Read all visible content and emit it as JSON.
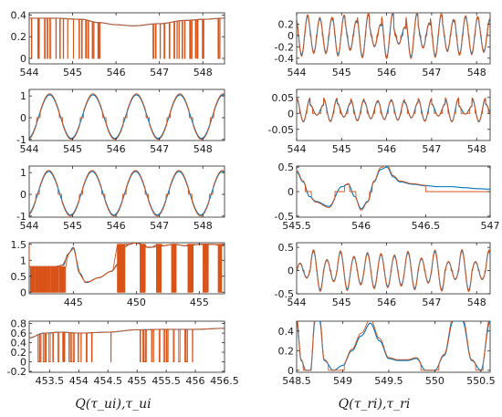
{
  "figure": {
    "xlabels": [
      "Q(τ_ui),τ_ui",
      "Q(τ_ri),τ_ri"
    ],
    "series_colors": {
      "tau": "#0072BD",
      "Q": "#D95319"
    }
  },
  "chart_data": [
    {
      "type": "line",
      "col": 0,
      "row": 0,
      "xlim": [
        544,
        548.5
      ],
      "ylim": [
        -0.05,
        0.42
      ],
      "xticks": [
        544,
        545,
        546,
        547,
        548
      ],
      "xticklabels": [
        "544",
        "545",
        "546",
        "547",
        "548"
      ],
      "yticks": [
        0,
        0.2,
        0.4
      ],
      "yticklabels": [
        "0",
        "0.2",
        "0.4"
      ],
      "series": [
        {
          "role": "tau",
          "kind": "smooth",
          "x": [
            544,
            544.6,
            545.2,
            545.6,
            546.0,
            546.4,
            547.0,
            547.6,
            548.0,
            548.5
          ],
          "y": [
            0.37,
            0.37,
            0.36,
            0.33,
            0.31,
            0.3,
            0.32,
            0.35,
            0.36,
            0.37
          ]
        },
        {
          "role": "Q",
          "kind": "burst",
          "lo": 0,
          "followTau": true,
          "seed": 11,
          "segments": [
            [
              544.05,
              545.3,
              0.4
            ],
            [
              545.35,
              545.75,
              0.25
            ],
            [
              546.85,
              548.1,
              0.5
            ],
            [
              548.35,
              548.45,
              0.2
            ]
          ]
        }
      ]
    },
    {
      "type": "line",
      "col": 0,
      "row": 1,
      "xlim": [
        544,
        548.5
      ],
      "ylim": [
        -1.05,
        1.3
      ],
      "xticks": [
        544,
        545,
        546,
        547,
        548
      ],
      "xticklabels": [
        "544",
        "545",
        "546",
        "547",
        "548"
      ],
      "yticks": [
        -1,
        0,
        1
      ],
      "yticklabels": [
        "-1",
        "0",
        "1"
      ],
      "series": [
        {
          "role": "tau",
          "kind": "sine",
          "amp": 1.0,
          "period": 1.0,
          "phase": 544.22,
          "offset": 0.05
        },
        {
          "role": "Q",
          "kind": "quant",
          "amp": 1.0,
          "period": 1.0,
          "phase": 544.22,
          "offset": 0.05,
          "step": 0.5
        }
      ]
    },
    {
      "type": "line",
      "col": 0,
      "row": 2,
      "xlim": [
        544,
        548.5
      ],
      "ylim": [
        -1.05,
        1.3
      ],
      "xticks": [
        544,
        545,
        546,
        547,
        548
      ],
      "xticklabels": [
        "544",
        "545",
        "546",
        "547",
        "548"
      ],
      "yticks": [
        -1,
        0,
        1
      ],
      "yticklabels": [
        "-1",
        "0",
        "1"
      ],
      "series": [
        {
          "role": "tau",
          "kind": "sine",
          "amp": 1.0,
          "period": 1.0,
          "phase": 544.2,
          "offset": 0.05
        },
        {
          "role": "Q",
          "kind": "quant",
          "amp": 1.0,
          "period": 1.0,
          "phase": 544.2,
          "offset": 0.05,
          "step": 0.5
        }
      ]
    },
    {
      "type": "line",
      "col": 0,
      "row": 3,
      "xlim": [
        441.5,
        457
      ],
      "ylim": [
        -0.05,
        1.55
      ],
      "xticks": [
        445,
        450,
        455
      ],
      "xticklabels": [
        "445",
        "450",
        "455"
      ],
      "yticks": [
        0,
        0.5,
        1,
        1.5
      ],
      "yticklabels": [
        "0",
        "0.5",
        "1",
        "1.5"
      ],
      "series": [
        {
          "role": "tau",
          "kind": "smooth",
          "x": [
            441.5,
            443.5,
            444.2,
            444.6,
            445.0,
            445.5,
            446.0,
            447.0,
            448.0,
            448.6,
            449.0,
            449.4,
            450.0,
            451.0,
            452.0,
            453.0,
            454.0,
            455.0,
            456.0,
            457.0
          ],
          "y": [
            0.8,
            0.8,
            0.85,
            1.2,
            1.4,
            0.6,
            0.3,
            0.45,
            0.65,
            0.9,
            1.4,
            1.5,
            1.55,
            1.4,
            1.45,
            1.5,
            1.45,
            1.5,
            1.5,
            1.45
          ]
        },
        {
          "role": "Q",
          "kind": "burst",
          "lo": 0,
          "followTau": false,
          "hi": 0.8,
          "seed": 5,
          "segments": [
            [
              441.6,
              444.4,
              0.8
            ]
          ]
        },
        {
          "role": "Q",
          "kind": "burst",
          "lo": 0,
          "followTau": false,
          "hi": 1.5,
          "seed": 9,
          "segments": [
            [
              448.5,
              449.1,
              0.9
            ],
            [
              450.3,
              450.7,
              0.9
            ],
            [
              451.6,
              452.0,
              0.9
            ],
            [
              452.8,
              453.2,
              0.9
            ],
            [
              454.1,
              454.5,
              0.9
            ],
            [
              455.3,
              455.7,
              0.9
            ],
            [
              456.5,
              456.8,
              0.9
            ]
          ]
        }
      ]
    },
    {
      "type": "line",
      "col": 0,
      "row": 4,
      "xlim": [
        453.15,
        456.5
      ],
      "ylim": [
        -0.22,
        0.85
      ],
      "xticks": [
        453.5,
        454,
        454.5,
        455,
        455.5,
        456,
        456.5
      ],
      "xticklabels": [
        "453.5",
        "454",
        "454.5",
        "455",
        "455.5",
        "456",
        "456.5"
      ],
      "yticks": [
        -0.2,
        0,
        0.2,
        0.4,
        0.6,
        0.8
      ],
      "yticklabels": [
        "-0.2",
        "0",
        "0.2",
        "0.4",
        "0.6",
        "0.8"
      ],
      "series": [
        {
          "role": "tau",
          "kind": "smooth",
          "x": [
            453.15,
            453.4,
            453.7,
            454.0,
            454.5,
            455.0,
            455.5,
            456.0,
            456.5
          ],
          "y": [
            0.5,
            0.6,
            0.62,
            0.6,
            0.62,
            0.67,
            0.68,
            0.68,
            0.7
          ]
        },
        {
          "role": "Q",
          "kind": "burst",
          "lo": 0.0,
          "followTau": true,
          "seed": 3,
          "segments": [
            [
              453.3,
              454.25,
              0.55
            ],
            [
              454.55,
              454.9,
              0.0
            ],
            [
              455.05,
              456.05,
              0.6
            ]
          ]
        }
      ]
    },
    {
      "type": "line",
      "col": 1,
      "row": 0,
      "xlim": [
        544,
        548.3
      ],
      "ylim": [
        -0.5,
        0.4
      ],
      "xticks": [
        544,
        545,
        546,
        547,
        548
      ],
      "xticklabels": [
        "544",
        "545",
        "546",
        "547",
        "548"
      ],
      "yticks": [
        -0.4,
        -0.2,
        0,
        0.2
      ],
      "yticklabels": [
        "-0.4",
        "-0.2",
        "0",
        "0.2"
      ],
      "series": [
        {
          "role": "tau",
          "kind": "osc",
          "amp": 0.38,
          "period": 0.27,
          "seed": 21
        },
        {
          "role": "Q",
          "kind": "spikes",
          "amp": 0.45,
          "period": 0.27,
          "seed": 21,
          "dead": 0.08
        }
      ]
    },
    {
      "type": "line",
      "col": 1,
      "row": 1,
      "xlim": [
        544,
        548.3
      ],
      "ylim": [
        -0.085,
        0.075
      ],
      "xticks": [
        544,
        545,
        546,
        547,
        548
      ],
      "xticklabels": [
        "544",
        "545",
        "546",
        "547",
        "548"
      ],
      "yticks": [
        -0.05,
        0,
        0.05
      ],
      "yticklabels": [
        "-0.05",
        "0",
        "0.05"
      ],
      "series": [
        {
          "role": "tau",
          "kind": "osc",
          "amp": 0.035,
          "period": 0.3,
          "seed": 33,
          "offset": 0.01
        },
        {
          "role": "Q",
          "kind": "spikes",
          "amp": 0.05,
          "period": 0.3,
          "seed": 33,
          "dead": 0.006,
          "offset": 0.01
        }
      ]
    },
    {
      "type": "line",
      "col": 1,
      "row": 2,
      "xlim": [
        545.5,
        547
      ],
      "ylim": [
        -0.52,
        0.52
      ],
      "xticks": [
        545.5,
        546,
        546.5,
        547
      ],
      "xticklabels": [
        "545.5",
        "546",
        "546.5",
        "547"
      ],
      "yticks": [
        -0.5,
        0,
        0.5
      ],
      "yticklabels": [
        "-0.5",
        "0",
        "0.5"
      ],
      "series": [
        {
          "role": "tau",
          "kind": "smooth",
          "x": [
            545.5,
            545.55,
            545.6,
            545.65,
            545.75,
            545.85,
            545.9,
            545.95,
            546.0,
            546.05,
            546.1,
            546.15,
            546.2,
            546.25,
            546.3,
            546.4,
            546.5,
            546.6,
            546.7,
            546.8,
            546.9,
            547.0
          ],
          "y": [
            0.4,
            0.2,
            -0.1,
            -0.2,
            -0.3,
            0.1,
            0.15,
            -0.1,
            -0.35,
            -0.2,
            0.2,
            0.45,
            0.5,
            0.3,
            0.2,
            0.15,
            0.12,
            0.1,
            0.1,
            0.08,
            0.06,
            0.05
          ]
        },
        {
          "role": "Q",
          "kind": "gated",
          "dead": 0.12,
          "seed": 2
        }
      ]
    },
    {
      "type": "line",
      "col": 1,
      "row": 3,
      "xlim": [
        544,
        548.3
      ],
      "ylim": [
        -0.5,
        0.6
      ],
      "xticks": [
        544,
        545,
        546,
        547,
        548
      ],
      "xticklabels": [
        "544",
        "545",
        "546",
        "547",
        "548"
      ],
      "yticks": [
        -0.5,
        0,
        0.5
      ],
      "yticklabels": [
        "-0.5",
        "0",
        "0.5"
      ],
      "series": [
        {
          "role": "tau",
          "kind": "osc",
          "amp": 0.42,
          "period": 0.3,
          "seed": 44
        },
        {
          "role": "Q",
          "kind": "spikes",
          "amp": 0.5,
          "period": 0.3,
          "seed": 44,
          "dead": 0.06
        }
      ]
    },
    {
      "type": "line",
      "col": 1,
      "row": 4,
      "xlim": [
        548.5,
        550.6
      ],
      "ylim": [
        -0.02,
        0.5
      ],
      "xticks": [
        548.5,
        549,
        549.5,
        550,
        550.5
      ],
      "xticklabels": [
        "548.5",
        "549",
        "549.5",
        "550",
        "550.5"
      ],
      "yticks": [
        0,
        0.2,
        0.4
      ],
      "yticklabels": [
        "0",
        "0.2",
        "0.4"
      ],
      "series": [
        {
          "role": "tau",
          "kind": "smooth",
          "x": [
            548.5,
            548.55,
            548.6,
            548.65,
            548.7,
            548.75,
            548.8,
            548.9,
            549.0,
            549.1,
            549.2,
            549.3,
            549.4,
            549.5,
            549.6,
            549.7,
            549.8,
            549.9,
            550.0,
            550.1,
            550.2,
            550.3,
            550.4,
            550.5,
            550.6
          ],
          "y": [
            0.5,
            0.1,
            0.0,
            0.0,
            0.5,
            0.5,
            0.1,
            0.0,
            0.05,
            0.2,
            0.35,
            0.48,
            0.3,
            0.12,
            0.1,
            0.1,
            0.12,
            0.0,
            0.0,
            0.15,
            0.5,
            0.5,
            0.1,
            0.0,
            0.5
          ]
        },
        {
          "role": "Q",
          "kind": "gated",
          "dead": 0.06,
          "seed": 7
        }
      ]
    }
  ]
}
